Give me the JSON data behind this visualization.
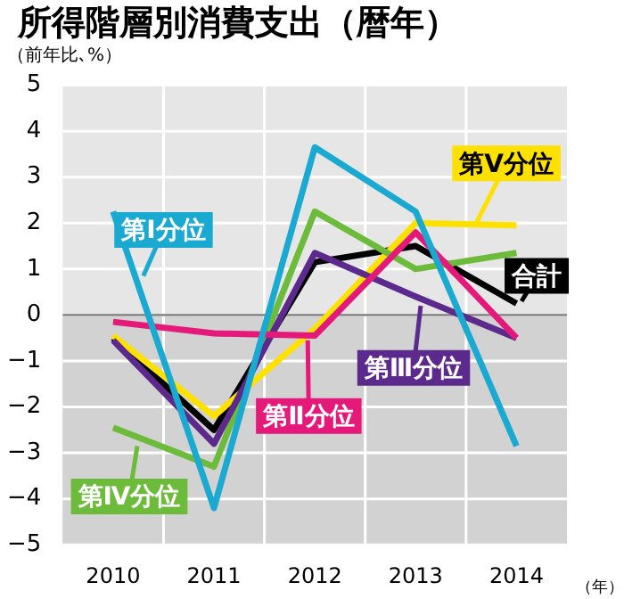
{
  "chart_data": {
    "type": "line",
    "title": "所得階層別消費支出（暦年）",
    "ylabel": "（前年比､%）",
    "xlabel": "（年）",
    "categories": [
      "2010",
      "2011",
      "2012",
      "2013",
      "2014"
    ],
    "series": [
      {
        "name": "第Ⅰ分位",
        "color": "#1aa9d0",
        "values": [
          2.25,
          -4.2,
          3.65,
          2.25,
          -2.85
        ]
      },
      {
        "name": "第Ⅱ分位",
        "color": "#e5197a",
        "values": [
          -0.15,
          -0.4,
          -0.45,
          1.8,
          -0.5
        ]
      },
      {
        "name": "第Ⅲ分位",
        "color": "#5b2a8c",
        "values": [
          -0.55,
          -2.8,
          1.35,
          0.4,
          -0.5
        ]
      },
      {
        "name": "第Ⅳ分位",
        "color": "#6dbb3a",
        "values": [
          -2.45,
          -3.3,
          2.25,
          1.0,
          1.35
        ]
      },
      {
        "name": "第Ⅴ分位",
        "color": "#ffe100",
        "values": [
          -0.45,
          -2.2,
          -0.3,
          2.0,
          1.95
        ]
      },
      {
        "name": "合計",
        "color": "#000000",
        "values": [
          -0.5,
          -2.5,
          1.15,
          1.5,
          0.25
        ]
      }
    ],
    "ylim": [
      -5,
      5
    ],
    "yticks": [
      -5,
      -4,
      -3,
      -2,
      -1,
      0,
      1,
      2,
      3,
      4,
      5
    ],
    "grid": true,
    "legend": false,
    "marker": "none",
    "line_style": "solid",
    "bands": [
      {
        "axis": "y",
        "from": -5,
        "to": 0,
        "color": "#d2d2d2"
      }
    ]
  }
}
